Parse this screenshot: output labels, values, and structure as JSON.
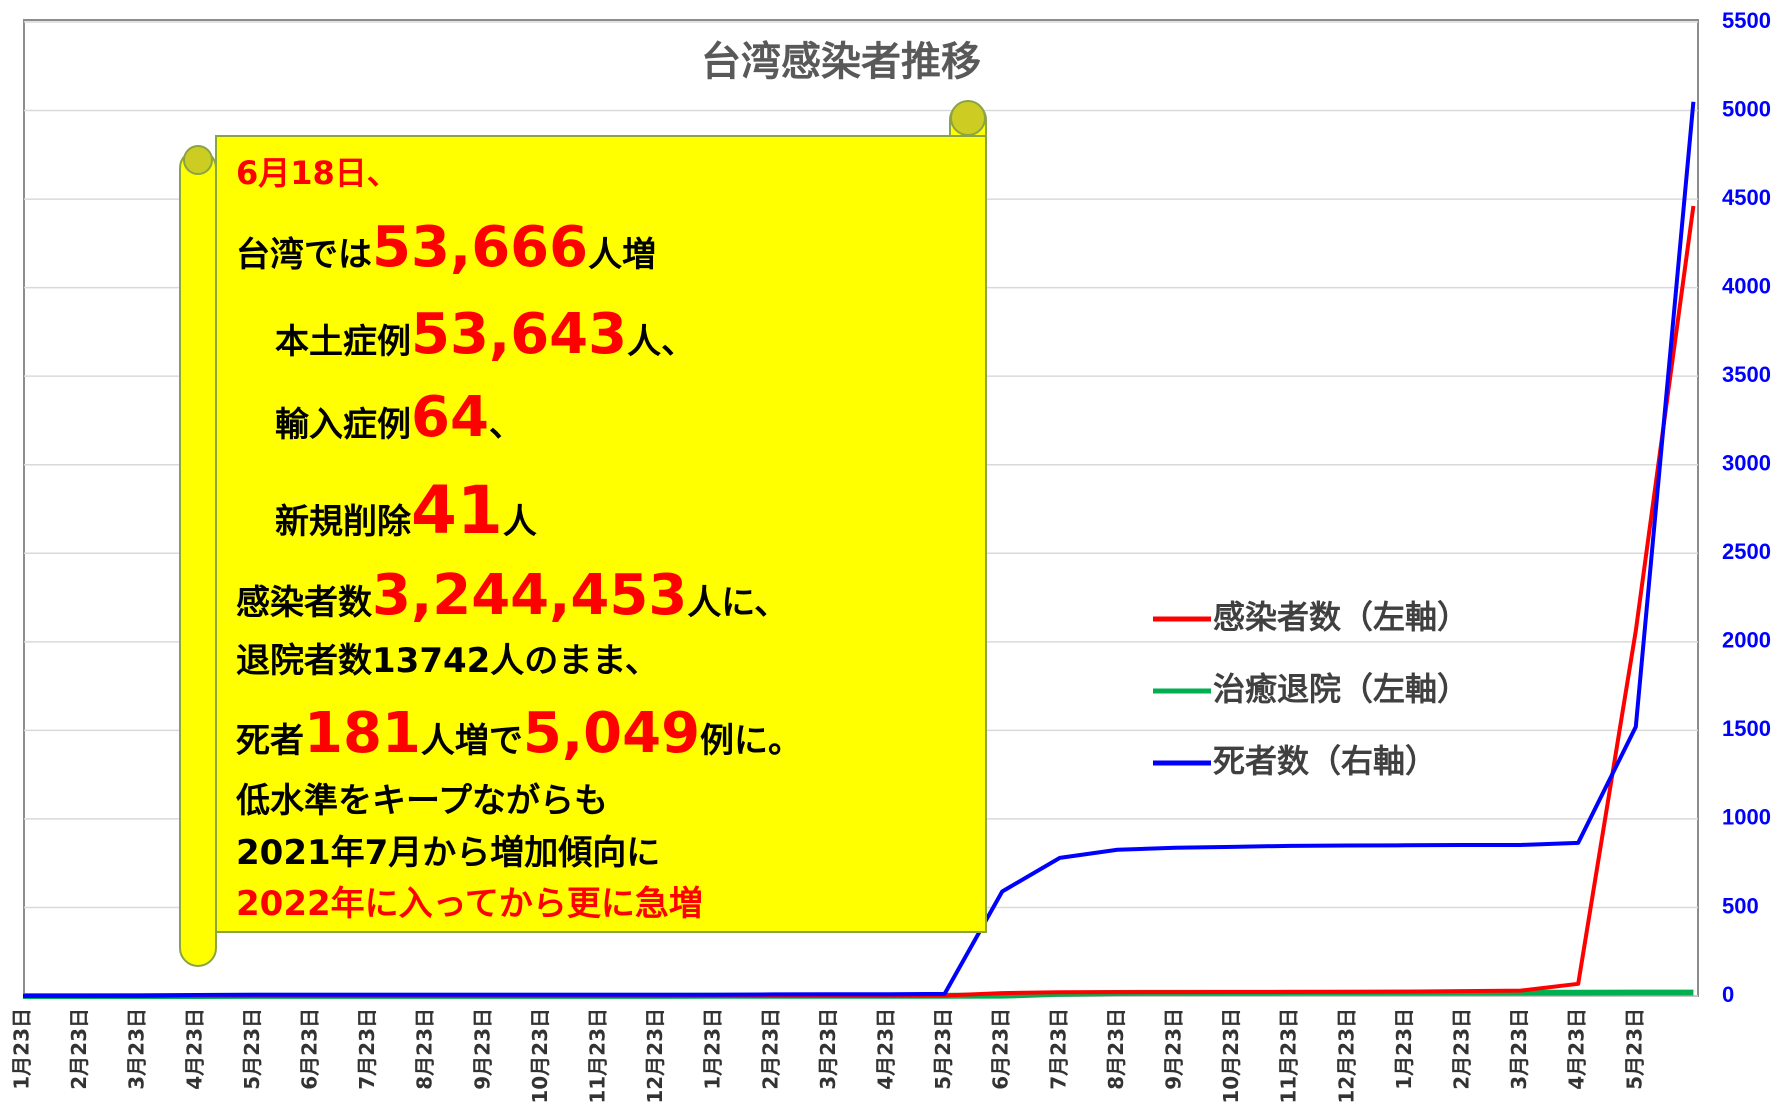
{
  "chart_data": {
    "type": "line",
    "title": "台湾感染者推移",
    "categories": [
      "1月23日",
      "2月23日",
      "3月23日",
      "4月23日",
      "5月23日",
      "6月23日",
      "7月23日",
      "8月23日",
      "9月23日",
      "10月23日",
      "11月23日",
      "12月23日",
      "1月23日",
      "2月23日",
      "3月23日",
      "4月23日",
      "5月23日",
      "6月23日",
      "7月23日",
      "8月23日",
      "9月23日",
      "10月23日",
      "11月23日",
      "12月23日",
      "1月23日",
      "2月23日",
      "3月23日",
      "4月23日",
      "5月23日",
      null
    ],
    "ylim": [
      0,
      4000000
    ],
    "y2lim": [
      0,
      5500
    ],
    "y2ticks": [
      0,
      500,
      1000,
      1500,
      2000,
      2500,
      3000,
      3500,
      4000,
      4500,
      5000,
      5500
    ],
    "grid": true,
    "legend": "right",
    "series": [
      {
        "name": "感染者数（左軸）",
        "color": "#ff0000",
        "values": [
          1,
          10,
          195,
          427,
          441,
          446,
          455,
          481,
          506,
          550,
          608,
          766,
          880,
          944,
          1000,
          1100,
          2000,
          12000,
          15400,
          15900,
          16100,
          16300,
          16600,
          17000,
          18000,
          20000,
          22000,
          50000,
          1500000,
          3244453
        ]
      },
      {
        "name": "治癒退院（左軸）",
        "color": "#00b050",
        "values": [
          0,
          2,
          30,
          200,
          420,
          430,
          440,
          460,
          480,
          500,
          540,
          650,
          800,
          880,
          930,
          1000,
          1100,
          1300,
          9000,
          12500,
          12800,
          13000,
          13100,
          13200,
          13300,
          13400,
          13500,
          13600,
          13700,
          13742
        ]
      },
      {
        "name": "死者数（右軸）",
        "color": "#0000ff",
        "axis": "y2",
        "values": [
          0,
          0,
          1,
          6,
          7,
          7,
          7,
          7,
          7,
          7,
          7,
          7,
          7,
          9,
          10,
          10,
          12,
          590,
          780,
          826,
          837,
          842,
          848,
          850,
          851,
          853,
          853,
          865,
          1520,
          5049
        ]
      }
    ],
    "annotation": {
      "lines": [
        [
          "6月18日、"
        ],
        [
          "台湾では",
          "53,666",
          "人増"
        ],
        [
          "本土症例",
          "53,643",
          "人、"
        ],
        [
          "輸入症例",
          "64",
          "、"
        ],
        [
          "新規削除",
          "41",
          "人"
        ],
        [
          "感染者数",
          "3,244,453",
          "人に、"
        ],
        [
          "退院者数13742人のまま、"
        ],
        [
          "死者",
          "181",
          "人増で",
          "5,049",
          "例に。"
        ],
        [
          "低水準をキープながらも"
        ],
        [
          "2021年7月から増加傾向に"
        ],
        [
          "2022年に入ってから更に急増"
        ]
      ]
    }
  }
}
